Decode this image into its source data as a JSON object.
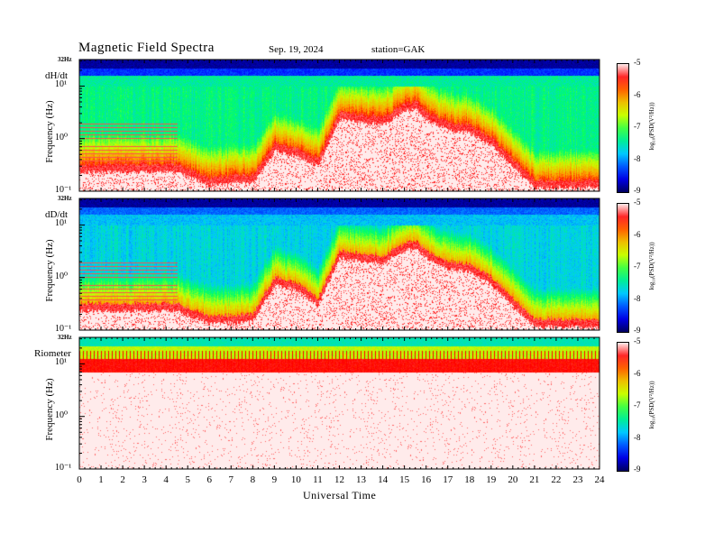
{
  "header": {
    "title": "Magnetic  Field  Spectra",
    "date": "Sep. 19, 2024",
    "station": "station=GAK"
  },
  "colors": {
    "scale": [
      "#000060",
      "#0000ff",
      "#00c8ff",
      "#00ff60",
      "#c8ff00",
      "#ffa000",
      "#ff0000",
      "#ffffff"
    ]
  },
  "chart_data": [
    {
      "type": "heatmap",
      "panel_label": "dH/dt",
      "top_label": "32Hz",
      "ylabel": "Frequency  (Hz)",
      "y_ticks": [
        "10¹",
        "10⁰",
        "10⁻¹"
      ],
      "ylim_log10": [
        -1,
        1.505
      ],
      "xlabel": "Universal  Time",
      "xlim": [
        0,
        24
      ],
      "x_ticks": [
        "0",
        "1",
        "2",
        "3",
        "4",
        "5",
        "6",
        "7",
        "8",
        "9",
        "10",
        "11",
        "12",
        "13",
        "14",
        "15",
        "16",
        "17",
        "18",
        "19",
        "20",
        "21",
        "22",
        "23",
        "24"
      ],
      "colorbar": {
        "label": "log₁₀(PSD(V²/Hz))",
        "ticks": [
          "-5",
          "-6",
          "-7",
          "-8",
          "-9"
        ],
        "range": [
          -9,
          -5
        ]
      },
      "noise_floor_log10_freq_by_hour": {
        "hours": [
          0,
          3,
          4.5,
          6,
          8,
          9,
          10,
          11,
          12,
          13,
          14,
          15,
          15.5,
          16,
          17,
          18,
          19,
          20,
          21,
          22,
          23,
          24
        ],
        "values": [
          -0.6,
          -0.6,
          -0.6,
          -0.85,
          -0.8,
          -0.2,
          -0.3,
          -0.5,
          0.4,
          0.35,
          0.3,
          0.55,
          0.6,
          0.4,
          0.2,
          0.15,
          -0.1,
          -0.5,
          -0.9,
          -0.9,
          -0.9,
          -0.9
        ]
      }
    },
    {
      "type": "heatmap",
      "panel_label": "dD/dt",
      "top_label": "32Hz",
      "ylabel": "Frequency  (Hz)",
      "y_ticks": [
        "10¹",
        "10⁰",
        "10⁻¹"
      ],
      "ylim_log10": [
        -1,
        1.505
      ],
      "xlabel": "Universal  Time",
      "xlim": [
        0,
        24
      ],
      "x_ticks": [
        "0",
        "1",
        "2",
        "3",
        "4",
        "5",
        "6",
        "7",
        "8",
        "9",
        "10",
        "11",
        "12",
        "13",
        "14",
        "15",
        "16",
        "17",
        "18",
        "19",
        "20",
        "21",
        "22",
        "23",
        "24"
      ],
      "colorbar": {
        "label": "log₁₀(PSD(V²/Hz))",
        "ticks": [
          "-5",
          "-6",
          "-7",
          "-8",
          "-9"
        ],
        "range": [
          -9,
          -5
        ]
      },
      "noise_floor_log10_freq_by_hour": {
        "hours": [
          0,
          3,
          4.5,
          6,
          8,
          9,
          10,
          11,
          12,
          13,
          14,
          15,
          15.5,
          16,
          17,
          18,
          19,
          20,
          21,
          22,
          23,
          24
        ],
        "values": [
          -0.6,
          -0.6,
          -0.6,
          -0.85,
          -0.8,
          -0.1,
          -0.2,
          -0.5,
          0.4,
          0.35,
          0.3,
          0.55,
          0.6,
          0.4,
          0.2,
          0.15,
          -0.1,
          -0.5,
          -0.9,
          -0.9,
          -0.9,
          -0.9
        ]
      }
    },
    {
      "type": "heatmap",
      "panel_label": "Riometer",
      "top_label": "32Hz",
      "ylabel": "Frequency  (Hz)",
      "y_ticks": [
        "10¹",
        "10⁰",
        "10⁻¹"
      ],
      "ylim_log10": [
        -1,
        1.505
      ],
      "xlabel": "Universal  Time",
      "xlim": [
        0,
        24
      ],
      "x_ticks": [
        "0",
        "1",
        "2",
        "3",
        "4",
        "5",
        "6",
        "7",
        "8",
        "9",
        "10",
        "11",
        "12",
        "13",
        "14",
        "15",
        "16",
        "17",
        "18",
        "19",
        "20",
        "21",
        "22",
        "23",
        "24"
      ],
      "colorbar": {
        "label": "log₁₀(PSD(V²/Hz))",
        "ticks": [
          "-5",
          "-6",
          "-7",
          "-8",
          "-9"
        ],
        "range": [
          -9,
          -5
        ]
      },
      "noise_floor_log10_freq_by_hour": {
        "hours": [
          0,
          24
        ],
        "values": [
          0.85,
          0.85
        ]
      }
    }
  ],
  "axis": {
    "xlabel": "Universal  Time"
  }
}
